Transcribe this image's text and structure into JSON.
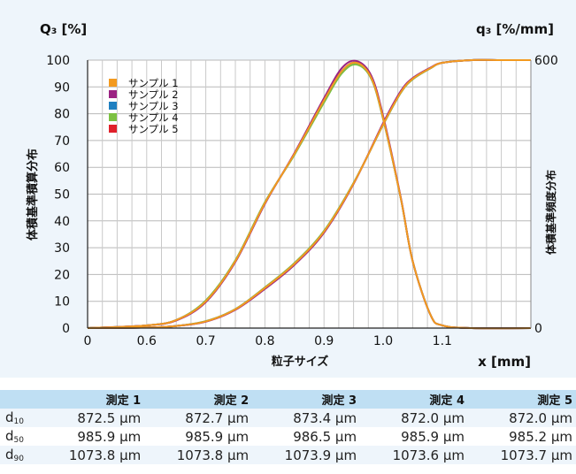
{
  "chart_data": {
    "type": "line",
    "left_axis_label": "Q₃ [%]",
    "right_axis_label": "q₃ [%/mm]",
    "left_vertical_label": "体積基準積算分布",
    "right_vertical_label": "体積基準頻度分布",
    "xlabel": "粒子サイズ",
    "x_unit_label": "x [mm]",
    "xlim": [
      0.5,
      1.25
    ],
    "x_ticks": [
      {
        "value": 0.5,
        "label": "0"
      },
      {
        "value": 0.6,
        "label": "0.6"
      },
      {
        "value": 0.7,
        "label": "0.7"
      },
      {
        "value": 0.8,
        "label": "0.8"
      },
      {
        "value": 0.9,
        "label": "0.9"
      },
      {
        "value": 1.0,
        "label": "1.0"
      },
      {
        "value": 1.1,
        "label": "1.1"
      }
    ],
    "ylim": [
      0,
      100
    ],
    "y_ticks": [
      "0",
      "10",
      "20",
      "30",
      "40",
      "50",
      "60",
      "70",
      "80",
      "90",
      "100"
    ],
    "y2lim": [
      0,
      600
    ],
    "y2_ticks": [
      "0",
      "600"
    ],
    "grid": true,
    "legend_position": "top-left",
    "series": [
      {
        "name": "サンプル 1",
        "color": "#f39a1f",
        "cumulative": {
          "x": [
            0.5,
            0.6,
            0.65,
            0.7,
            0.75,
            0.8,
            0.85,
            0.9,
            0.95,
            1.0,
            1.03,
            1.05,
            1.08,
            1.1,
            1.15,
            1.2,
            1.25
          ],
          "y": [
            0,
            0.2,
            0.8,
            2.5,
            7,
            15,
            24,
            36,
            54,
            76,
            88,
            93,
            97,
            99,
            100,
            100,
            100
          ]
        },
        "frequency": {
          "x": [
            0.5,
            0.6,
            0.65,
            0.7,
            0.75,
            0.8,
            0.85,
            0.9,
            0.93,
            0.955,
            0.98,
            1.0,
            1.03,
            1.05,
            1.08,
            1.1,
            1.15,
            1.25
          ],
          "y": [
            0,
            6,
            18,
            60,
            150,
            280,
            390,
            510,
            575,
            594,
            560,
            470,
            290,
            150,
            30,
            6,
            0,
            0
          ]
        }
      },
      {
        "name": "サンプル 2",
        "color": "#9b2382",
        "cumulative": {
          "x": [
            0.5,
            0.6,
            0.65,
            0.7,
            0.75,
            0.8,
            0.85,
            0.9,
            0.95,
            1.0,
            1.03,
            1.05,
            1.08,
            1.1,
            1.15,
            1.2,
            1.25
          ],
          "y": [
            0,
            0.2,
            0.8,
            2.4,
            6.8,
            14.6,
            23.6,
            35.6,
            53.8,
            76.5,
            88.5,
            93.3,
            97.2,
            99,
            100,
            100,
            100
          ]
        },
        "frequency": {
          "x": [
            0.5,
            0.6,
            0.65,
            0.7,
            0.75,
            0.8,
            0.85,
            0.9,
            0.93,
            0.955,
            0.98,
            1.0,
            1.03,
            1.05,
            1.08,
            1.1,
            1.15,
            1.25
          ],
          "y": [
            0,
            6,
            17,
            58,
            148,
            278,
            392,
            515,
            582,
            598,
            565,
            475,
            292,
            150,
            30,
            6,
            0,
            0
          ]
        }
      },
      {
        "name": "サンプル 3",
        "color": "#1f7fc0",
        "cumulative": {
          "x": [
            0.5,
            0.6,
            0.65,
            0.7,
            0.75,
            0.8,
            0.85,
            0.9,
            0.95,
            1.0,
            1.03,
            1.05,
            1.08,
            1.1,
            1.15,
            1.2,
            1.25
          ],
          "y": [
            0,
            0.2,
            0.8,
            2.5,
            7,
            15,
            24,
            36,
            54,
            76,
            88,
            93,
            97,
            99,
            100,
            100,
            100
          ]
        },
        "frequency": {
          "x": [
            0.5,
            0.6,
            0.65,
            0.7,
            0.75,
            0.8,
            0.85,
            0.9,
            0.93,
            0.955,
            0.98,
            1.0,
            1.03,
            1.05,
            1.08,
            1.1,
            1.15,
            1.25
          ],
          "y": [
            0,
            6,
            18,
            60,
            150,
            280,
            390,
            510,
            575,
            594,
            560,
            470,
            290,
            150,
            30,
            6,
            0,
            0
          ]
        }
      },
      {
        "name": "サンプル 4",
        "color": "#7cc142",
        "cumulative": {
          "x": [
            0.5,
            0.6,
            0.65,
            0.7,
            0.75,
            0.8,
            0.85,
            0.9,
            0.95,
            1.0,
            1.03,
            1.05,
            1.08,
            1.1,
            1.15,
            1.2,
            1.25
          ],
          "y": [
            0,
            0.2,
            0.8,
            2.6,
            7.1,
            15.2,
            24.3,
            36.3,
            54.2,
            75.8,
            87.8,
            92.8,
            96.9,
            99,
            100,
            100,
            100
          ]
        },
        "frequency": {
          "x": [
            0.5,
            0.6,
            0.65,
            0.7,
            0.75,
            0.8,
            0.85,
            0.9,
            0.93,
            0.955,
            0.98,
            1.0,
            1.03,
            1.05,
            1.08,
            1.1,
            1.15,
            1.25
          ],
          "y": [
            0,
            6,
            18,
            62,
            152,
            282,
            388,
            505,
            570,
            590,
            558,
            468,
            290,
            150,
            30,
            6,
            0,
            0
          ]
        }
      },
      {
        "name": "サンプル 5",
        "color": "#e0202a",
        "cumulative": {
          "x": [
            0.5,
            0.6,
            0.65,
            0.7,
            0.75,
            0.8,
            0.85,
            0.9,
            0.95,
            1.0,
            1.03,
            1.05,
            1.08,
            1.1,
            1.15,
            1.2,
            1.25
          ],
          "y": [
            0,
            0.2,
            0.8,
            2.5,
            7,
            15,
            24,
            36,
            54,
            76,
            88,
            93,
            97,
            99,
            100,
            100,
            100
          ]
        },
        "frequency": {
          "x": [
            0.5,
            0.6,
            0.65,
            0.7,
            0.75,
            0.8,
            0.85,
            0.9,
            0.93,
            0.955,
            0.98,
            1.0,
            1.03,
            1.05,
            1.08,
            1.1,
            1.15,
            1.25
          ],
          "y": [
            0,
            6,
            18,
            60,
            150,
            280,
            390,
            510,
            575,
            594,
            560,
            470,
            290,
            150,
            30,
            6,
            0,
            0
          ]
        }
      }
    ]
  },
  "table": {
    "headers": [
      "",
      "測定 1",
      "測定 2",
      "測定 3",
      "測定 4",
      "測定 5"
    ],
    "rows": [
      {
        "label": "d",
        "sub": "10",
        "values": [
          "872.5 µm",
          "872.7 µm",
          "873.4 µm",
          "872.0 µm",
          "872.0 µm"
        ]
      },
      {
        "label": "d",
        "sub": "50",
        "values": [
          "985.9 µm",
          "985.9 µm",
          "986.5 µm",
          "985.9 µm",
          "985.2 µm"
        ]
      },
      {
        "label": "d",
        "sub": "90",
        "values": [
          "1073.8 µm",
          "1073.8 µm",
          "1073.9 µm",
          "1073.6 µm",
          "1073.7 µm"
        ]
      }
    ]
  }
}
